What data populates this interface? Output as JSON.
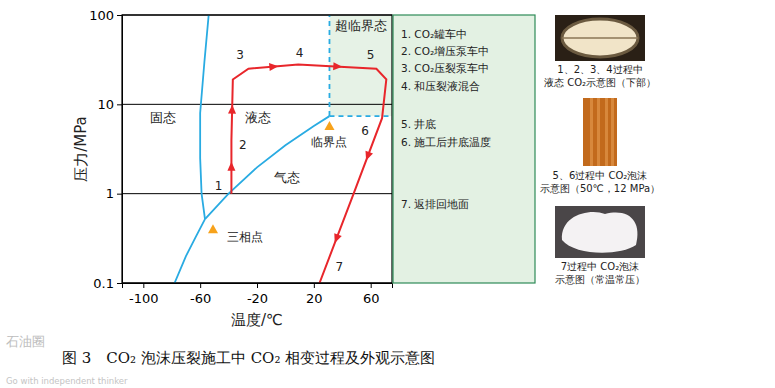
{
  "chart_data": {
    "type": "line",
    "x_label": "温度/℃",
    "y_label": "压力/MPa",
    "xlim": [
      -115,
      75
    ],
    "ylim": [
      0.1,
      100
    ],
    "xticks": [
      -100,
      -60,
      -20,
      20,
      60
    ],
    "yticks": [
      0.1,
      1,
      10,
      100
    ],
    "log": "y",
    "grid": "y",
    "series": [
      {
        "x": [
          -78,
          -70,
          -63,
          -56.6
        ],
        "values": [
          0.1,
          0.2,
          0.33,
          0.518
        ],
        "color": "#29abe2",
        "line_style": "solid"
      },
      {
        "x": [
          -56.6,
          -59,
          -60,
          -60,
          -57,
          -54
        ],
        "values": [
          0.518,
          1,
          2.5,
          8,
          30,
          100
        ],
        "color": "#29abe2",
        "line_style": "solid"
      },
      {
        "x": [
          -56.6,
          -40,
          -20,
          0,
          20,
          31
        ],
        "values": [
          0.518,
          1.0,
          1.97,
          3.49,
          5.73,
          7.38
        ],
        "color": "#29abe2",
        "line_style": "solid"
      },
      {
        "x": [
          31,
          31
        ],
        "values": [
          7.38,
          100
        ],
        "color": "#29abe2",
        "line_style": "dashed"
      },
      {
        "x": [
          31,
          75
        ],
        "values": [
          7.38,
          7.38
        ],
        "color": "#29abe2",
        "line_style": "dashed"
      },
      {
        "x": [
          -38,
          -38,
          -37,
          -26,
          9,
          64,
          71,
          68,
          48,
          24
        ],
        "values": [
          1.0,
          4,
          19,
          25,
          28,
          25,
          19,
          7,
          1,
          0.1
        ],
        "color": "#e8262b",
        "line_style": "solid",
        "marker": "arrow"
      }
    ],
    "annotations": [
      {
        "text": "固态",
        "x": -86,
        "y": 7
      },
      {
        "text": "液态",
        "x": -19,
        "y": 7
      },
      {
        "text": "气态",
        "x": 1,
        "y": 1.46
      },
      {
        "text": "超临界态",
        "x": 53,
        "y": 75
      }
    ],
    "points": [
      {
        "text": "临界点",
        "x": 31,
        "y": 7.38,
        "color": "#f7a21b"
      },
      {
        "text": "三相点",
        "x": -56.6,
        "y": 0.518,
        "color": "#f7a21b"
      }
    ],
    "step_labels": [
      {
        "text": "1",
        "x": -47,
        "y": 1.2
      },
      {
        "text": "2",
        "x": -30,
        "y": 3.5
      },
      {
        "text": "3",
        "x": -32,
        "y": 35
      },
      {
        "text": "4",
        "x": 10,
        "y": 37
      },
      {
        "text": "5",
        "x": 60,
        "y": 35
      },
      {
        "text": "6",
        "x": 56,
        "y": 5
      },
      {
        "text": "7",
        "x": 38,
        "y": 0.15
      }
    ]
  },
  "legend_box": {
    "items": [
      "1. CO₂罐车中",
      "2. CO₂增压泵车中",
      "3. CO₂压裂泵车中",
      "4. 和压裂液混合",
      "5. 井底",
      "6. 施工后井底温度",
      "7. 返排回地面"
    ]
  },
  "photos": [
    {
      "caption": [
        "1、2、3、4过程中",
        "液态 CO₂示意图（下部）"
      ]
    },
    {
      "caption": [
        "5、6过程中 CO₂泡沫",
        "示意图（50℃，12 MPa）"
      ]
    },
    {
      "caption": [
        "7过程中 CO₂泡沫",
        "示意图（常温常压）"
      ]
    }
  ],
  "caption": "图 3　CO₂ 泡沫压裂施工中 CO₂ 相变过程及外观示意图",
  "watermark": [
    "石油圈",
    "Go with independent thinker"
  ]
}
